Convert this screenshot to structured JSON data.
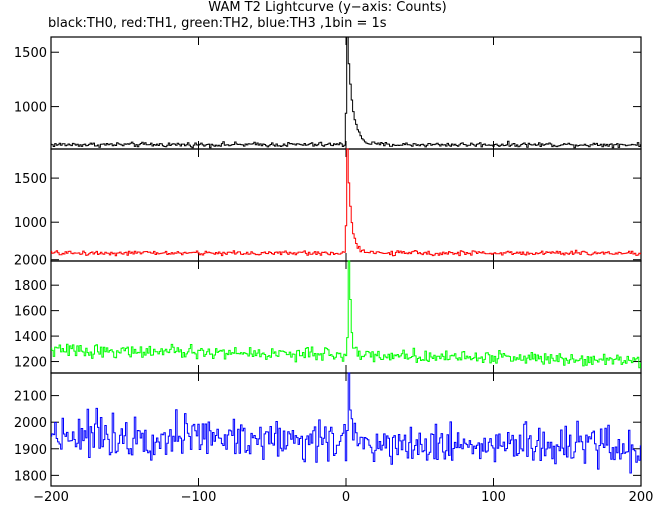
{
  "chart_data": {
    "type": "line",
    "title": "WAM T2 Lightcurve (y−axis: Counts)",
    "subtitle": "black:TH0, red:TH1, green:TH2, blue:TH3 ,1bin = 1s",
    "xlim": [
      -200,
      200
    ],
    "x_ticks": [
      -200,
      -100,
      0,
      100,
      200
    ],
    "x_tick_labels": [
      "−200",
      "−100",
      "0",
      "100",
      "200"
    ],
    "x_bin_seconds": 1,
    "panels": [
      {
        "name": "TH0",
        "color": "#000000",
        "ylim": [
          610,
          1640
        ],
        "y_ticks": [
          1000,
          1500
        ],
        "y_tick_labels": [
          "1000",
          "1500"
        ],
        "baseline": 650,
        "noise_amplitude": 15,
        "peak": {
          "x": 1,
          "value": 1640,
          "decay": 3.5
        }
      },
      {
        "name": "TH1",
        "color": "#ff0000",
        "ylim": [
          560,
          1830
        ],
        "y_ticks": [
          1000,
          1500
        ],
        "y_tick_labels": [
          "1000",
          "1500"
        ],
        "baseline": 650,
        "noise_amplitude": 18,
        "peak": {
          "x": 1,
          "value": 1830,
          "decay": 2.5
        }
      },
      {
        "name": "TH2",
        "color": "#00ff00",
        "ylim": [
          1110,
          1990
        ],
        "y_ticks": [
          1200,
          1400,
          1600,
          1800,
          2000
        ],
        "y_tick_labels": [
          "1200",
          "1400",
          "1600",
          "1800",
          "2000"
        ],
        "baseline_start": 1290,
        "baseline_end": 1215,
        "noise_amplitude": 35,
        "peak": {
          "x": 2,
          "value": 1990,
          "decay": 1.5
        }
      },
      {
        "name": "TH3",
        "color": "#0000ff",
        "ylim": [
          1760,
          2185
        ],
        "y_ticks": [
          1800,
          1900,
          2000,
          2100
        ],
        "y_tick_labels": [
          "1800",
          "1900",
          "2000",
          "2100"
        ],
        "baseline_start": 1960,
        "baseline_end": 1900,
        "noise_amplitude": 55,
        "peak": {
          "x": 2,
          "value": 2185,
          "decay": 1
        }
      }
    ]
  }
}
